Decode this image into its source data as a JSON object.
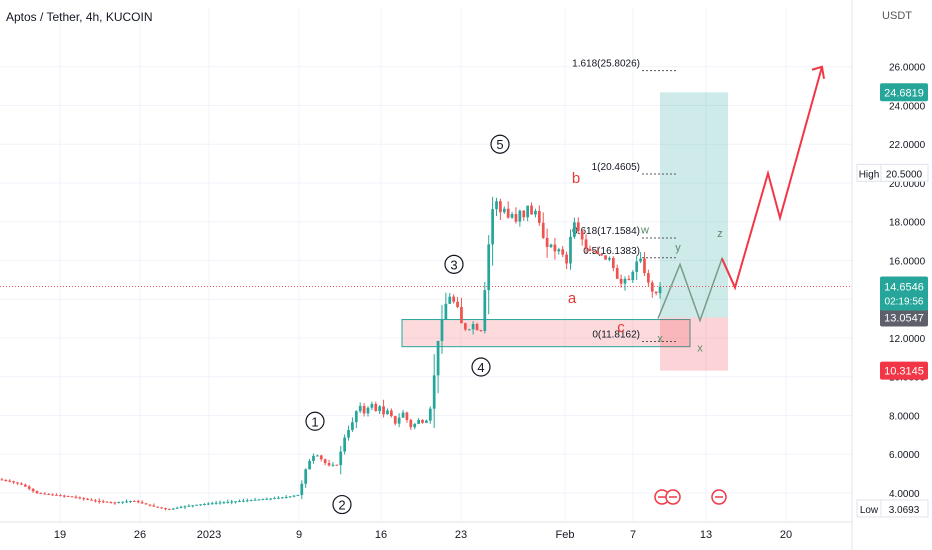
{
  "header": {
    "title": "Aptos / Tether, 4h, KUCOIN",
    "currency": "USDT"
  },
  "chart_data": {
    "type": "candlestick",
    "ylim": [
      2.5,
      28
    ],
    "y_ticks": [
      "4.0000",
      "6.0000",
      "8.0000",
      "10.0000",
      "12.0000",
      "14.0000",
      "16.0000",
      "18.0000",
      "20.0000",
      "22.0000",
      "24.0000",
      "26.0000"
    ],
    "x_ticks": [
      "19",
      "26",
      "2023",
      "9",
      "16",
      "23",
      "Feb",
      "7",
      "13",
      "20"
    ],
    "price_path": [
      [
        0,
        4.7
      ],
      [
        12,
        4.6
      ],
      [
        25,
        4.4
      ],
      [
        38,
        4.0
      ],
      [
        55,
        3.9
      ],
      [
        75,
        3.8
      ],
      [
        95,
        3.6
      ],
      [
        115,
        3.5
      ],
      [
        135,
        3.6
      ],
      [
        155,
        3.3
      ],
      [
        170,
        3.15
      ],
      [
        185,
        3.3
      ],
      [
        200,
        3.4
      ],
      [
        220,
        3.5
      ],
      [
        245,
        3.6
      ],
      [
        270,
        3.7
      ],
      [
        290,
        3.8
      ],
      [
        300,
        3.9
      ],
      [
        303,
        4.3
      ],
      [
        306,
        5.0
      ],
      [
        309,
        5.4
      ],
      [
        312,
        5.7
      ],
      [
        315,
        5.9
      ],
      [
        318,
        6.0
      ],
      [
        322,
        5.8
      ],
      [
        326,
        5.6
      ],
      [
        330,
        5.4
      ],
      [
        334,
        5.5
      ],
      [
        338,
        5.3
      ],
      [
        342,
        6.0
      ],
      [
        346,
        6.8
      ],
      [
        350,
        7.2
      ],
      [
        354,
        7.6
      ],
      [
        358,
        8.2
      ],
      [
        362,
        8.5
      ],
      [
        366,
        8.1
      ],
      [
        370,
        8.4
      ],
      [
        374,
        8.6
      ],
      [
        378,
        8.2
      ],
      [
        382,
        8.5
      ],
      [
        386,
        8.0
      ],
      [
        390,
        8.3
      ],
      [
        394,
        7.9
      ],
      [
        398,
        7.5
      ],
      [
        402,
        8.0
      ],
      [
        406,
        8.2
      ],
      [
        410,
        7.6
      ],
      [
        414,
        7.3
      ],
      [
        418,
        7.7
      ],
      [
        422,
        7.8
      ],
      [
        426,
        7.5
      ],
      [
        430,
        7.9
      ],
      [
        433,
        8.5
      ],
      [
        436,
        10.0
      ],
      [
        439,
        11.5
      ],
      [
        442,
        12.5
      ],
      [
        445,
        13.2
      ],
      [
        448,
        13.8
      ],
      [
        451,
        14.3
      ],
      [
        454,
        13.6
      ],
      [
        457,
        14.1
      ],
      [
        460,
        13.5
      ],
      [
        463,
        12.8
      ],
      [
        466,
        12.5
      ],
      [
        470,
        12.3
      ],
      [
        474,
        12.8
      ],
      [
        478,
        12.5
      ],
      [
        482,
        12.1
      ],
      [
        485,
        13.0
      ],
      [
        488,
        15.5
      ],
      [
        491,
        17.0
      ],
      [
        494,
        18.5
      ],
      [
        497,
        19.3
      ],
      [
        500,
        18.8
      ],
      [
        503,
        18.4
      ],
      [
        506,
        18.7
      ],
      [
        510,
        18.2
      ],
      [
        514,
        18.4
      ],
      [
        518,
        18.0
      ],
      [
        522,
        18.6
      ],
      [
        526,
        18.2
      ],
      [
        530,
        18.9
      ],
      [
        534,
        18.3
      ],
      [
        538,
        18.6
      ],
      [
        542,
        17.8
      ],
      [
        546,
        17.0
      ],
      [
        550,
        16.6
      ],
      [
        554,
        16.9
      ],
      [
        558,
        16.3
      ],
      [
        562,
        16.7
      ],
      [
        566,
        16.1
      ],
      [
        570,
        15.7
      ],
      [
        574,
        18.2
      ],
      [
        578,
        17.8
      ],
      [
        582,
        17.3
      ],
      [
        586,
        16.9
      ],
      [
        590,
        16.3
      ],
      [
        594,
        16.7
      ],
      [
        598,
        16.2
      ],
      [
        602,
        16.5
      ],
      [
        606,
        15.9
      ],
      [
        610,
        16.3
      ],
      [
        614,
        15.8
      ],
      [
        618,
        15.2
      ],
      [
        622,
        14.7
      ],
      [
        626,
        15.1
      ],
      [
        630,
        14.9
      ],
      [
        634,
        15.3
      ],
      [
        638,
        15.9
      ],
      [
        642,
        16.2
      ],
      [
        646,
        15.4
      ],
      [
        650,
        14.9
      ],
      [
        654,
        14.4
      ],
      [
        658,
        14.3
      ],
      [
        662,
        14.65
      ]
    ],
    "candle_count": 170,
    "current_price": "14.6546",
    "countdown": "02:19:56",
    "high_label": "High",
    "high_value": "20.5000",
    "low_label": "Low",
    "low_value": "3.0693",
    "price_tags": [
      {
        "text": "24.6819",
        "value": 24.6819,
        "color": "#26a69a"
      },
      {
        "text": "13.0547",
        "value": 13.0547,
        "color": "#5d606b"
      },
      {
        "text": "10.3145",
        "value": 10.3145,
        "color": "#f23645"
      }
    ],
    "fib_levels": [
      {
        "label": "1.618(25.8026)",
        "value": 25.8026
      },
      {
        "label": "1(20.4605)",
        "value": 20.4605
      },
      {
        "label": "0.618(17.1584)",
        "value": 17.1584
      },
      {
        "label": "0.5(16.1383)",
        "value": 16.1383
      },
      {
        "label": "0(11.8162)",
        "value": 11.8162
      }
    ],
    "wave_labels": [
      {
        "text": "1",
        "x": 315,
        "y": 7.7
      },
      {
        "text": "2",
        "x": 342,
        "y": 3.4
      },
      {
        "text": "3",
        "x": 454,
        "y": 15.8
      },
      {
        "text": "4",
        "x": 481,
        "y": 10.5
      },
      {
        "text": "5",
        "x": 500,
        "y": 22.0
      }
    ],
    "abc_labels": [
      {
        "text": "b",
        "x": 576,
        "y": 20.0
      },
      {
        "text": "a",
        "x": 572,
        "y": 13.8
      },
      {
        "text": "c",
        "x": 621,
        "y": 12.3
      }
    ],
    "wxyz_labels": [
      {
        "text": "w",
        "x": 645,
        "y": 17.4
      },
      {
        "text": "y",
        "x": 678,
        "y": 16.5
      },
      {
        "text": "z",
        "x": 720,
        "y": 17.2
      },
      {
        "text": "x",
        "x": 660,
        "y": 11.8
      },
      {
        "text": "x",
        "x": 700,
        "y": 11.3
      }
    ],
    "projection_gray": [
      [
        658,
        13.0
      ],
      [
        680,
        15.8
      ],
      [
        700,
        12.9
      ],
      [
        722,
        16.1
      ],
      [
        735,
        14.6
      ]
    ],
    "projection_red": [
      [
        722,
        16.1
      ],
      [
        735,
        14.6
      ],
      [
        768,
        20.5
      ],
      [
        780,
        18.2
      ],
      [
        822,
        26.0
      ]
    ],
    "support_box": {
      "t0": 402,
      "t1": 690,
      "y0": 11.55,
      "y1": 12.95
    },
    "long_position": {
      "t0": 660,
      "t1": 728,
      "target": 24.6819,
      "entry": 13.0547,
      "stop": 10.3145
    },
    "colors": {
      "up": "#26a69a",
      "down": "#ef5350",
      "candle_body": "#2f3b4a",
      "projection_red": "#f23645",
      "projection_gray": "#7a9a8a",
      "fib": "#555555"
    }
  }
}
